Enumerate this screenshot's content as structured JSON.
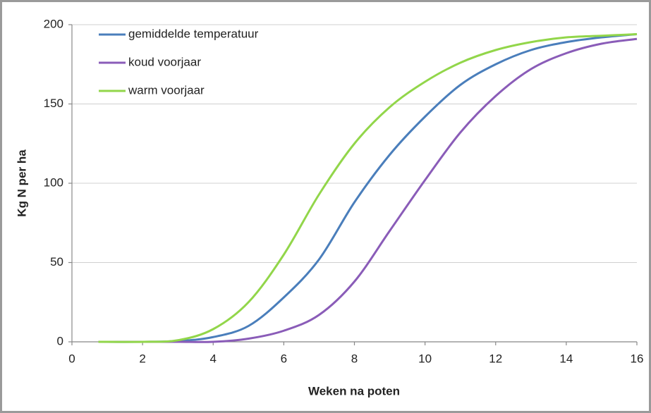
{
  "chart_data": {
    "type": "line",
    "x_label": "Weken na poten",
    "y_label": "Kg N per ha",
    "x": [
      0.75,
      2,
      3,
      4,
      5,
      6,
      7,
      8,
      9,
      10,
      11,
      12,
      13,
      14,
      15,
      16
    ],
    "series": [
      {
        "name": "gemiddelde temperatuur",
        "color": "#4a7ebb",
        "values": [
          0,
          0,
          0.5,
          3,
          10,
          28,
          52,
          88,
          118,
          142,
          162,
          175,
          184,
          189,
          192,
          194
        ]
      },
      {
        "name": "koud voorjaar",
        "color": "#8a5cb8",
        "values": [
          0,
          0,
          0,
          0,
          2,
          7,
          17,
          38,
          70,
          102,
          132,
          155,
          172,
          182,
          188,
          191
        ]
      },
      {
        "name": "warm voorjaar",
        "color": "#92d64a",
        "values": [
          0,
          0,
          1,
          8,
          25,
          55,
          93,
          125,
          148,
          164,
          176,
          184,
          189,
          192,
          193,
          194
        ]
      }
    ],
    "xlim": [
      0,
      16
    ],
    "xticks": [
      0,
      2,
      4,
      6,
      8,
      10,
      12,
      14,
      16
    ],
    "ylim": [
      0,
      200
    ],
    "yticks": [
      0,
      50,
      100,
      150,
      200
    ],
    "grid": true,
    "legend": "upper left"
  }
}
